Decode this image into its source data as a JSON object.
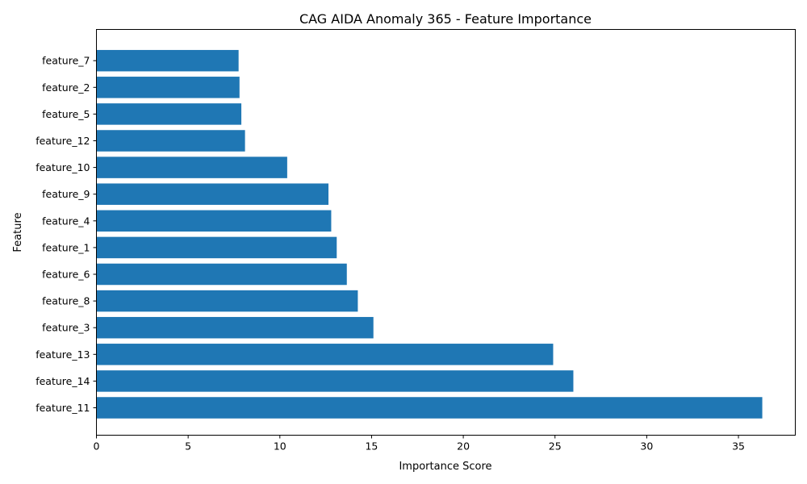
{
  "chart_data": {
    "type": "bar",
    "orientation": "horizontal",
    "title": "CAG AIDA Anomaly 365 - Feature Importance",
    "xlabel": "Importance Score",
    "ylabel": "Feature",
    "categories": [
      "feature_11",
      "feature_14",
      "feature_13",
      "feature_3",
      "feature_8",
      "feature_6",
      "feature_1",
      "feature_4",
      "feature_9",
      "feature_10",
      "feature_12",
      "feature_5",
      "feature_2",
      "feature_7"
    ],
    "values": [
      36.3,
      26.0,
      24.9,
      15.1,
      14.25,
      13.65,
      13.1,
      12.8,
      12.65,
      10.4,
      8.1,
      7.9,
      7.8,
      7.75
    ],
    "xlim": [
      0,
      38.1
    ],
    "xticks": [
      0,
      5,
      10,
      15,
      20,
      25,
      30,
      35
    ],
    "grid": false,
    "bar_color": "#1f77b4"
  }
}
